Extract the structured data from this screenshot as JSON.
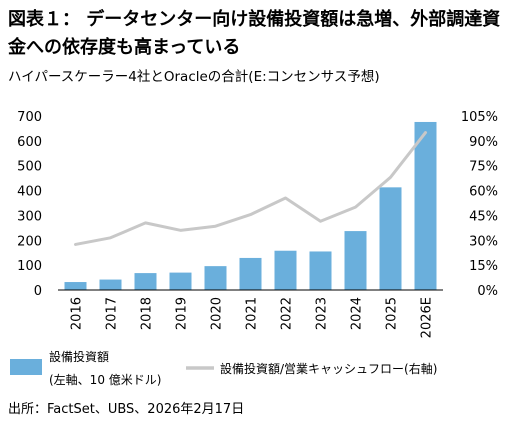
{
  "title": "図表１： データセンター向け設備投資額は急増、外部調達資金への依存度も高まっている",
  "subtitle": "ハイパースケーラー4社とOracleの合計(E:コンセンサス予想)",
  "source": "出所：FactSet、UBS、2026年2月17日",
  "colors": {
    "bar": "#6aafdc",
    "line": "#c8c8c8",
    "axis": "#000000"
  },
  "chart_data": {
    "type": "bar",
    "categories": [
      "2016",
      "2017",
      "2018",
      "2019",
      "2020",
      "2021",
      "2022",
      "2023",
      "2024",
      "2025",
      "2026E"
    ],
    "ylim_left": [
      0,
      700
    ],
    "ylim_right": [
      0,
      105
    ],
    "left_ticks": [
      0,
      100,
      200,
      300,
      400,
      500,
      600,
      700
    ],
    "right_ticks": [
      "0%",
      "15%",
      "30%",
      "45%",
      "60%",
      "75%",
      "90%",
      "105%"
    ],
    "series": [
      {
        "name": "設備投資額",
        "name_line2": "(左軸、10 億米ドル)",
        "type": "bar",
        "axis": "left",
        "values": [
          32,
          42,
          68,
          70,
          96,
          129,
          158,
          155,
          237,
          413,
          676
        ]
      },
      {
        "name": "設備投資額/営業キャッシュフロー(右軸)",
        "type": "line",
        "axis": "right",
        "values": [
          27.5,
          31.5,
          40.5,
          36,
          38.5,
          45.5,
          55.5,
          41.5,
          50,
          68,
          95
        ]
      }
    ],
    "grid": false,
    "legend_position": "bottom"
  }
}
